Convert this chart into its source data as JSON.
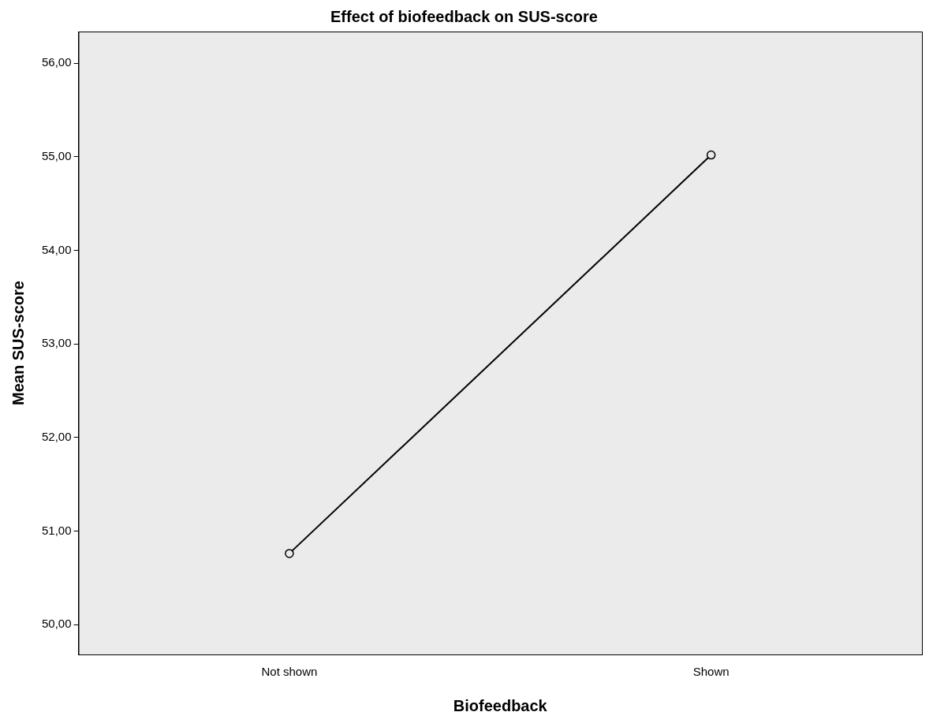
{
  "chart_data": {
    "type": "line",
    "title": "Effect of biofeedback on SUS-score",
    "xlabel": "Biofeedback",
    "ylabel": "Mean SUS-score",
    "categories": [
      "Not shown",
      "Shown"
    ],
    "series": [
      {
        "color": "#000000",
        "values": [
          50.76,
          55.02
        ]
      }
    ],
    "ylim": [
      49.68,
      56.34
    ],
    "yticks": [
      {
        "value": 50,
        "label": "50,00"
      },
      {
        "value": 51,
        "label": "51,00"
      },
      {
        "value": 52,
        "label": "52,00"
      },
      {
        "value": 53,
        "label": "53,00"
      },
      {
        "value": 54,
        "label": "54,00"
      },
      {
        "value": 55,
        "label": "55,00"
      },
      {
        "value": 56,
        "label": "56,00"
      }
    ],
    "grid": false,
    "legend": false,
    "marker": "circle",
    "line_style": "solid"
  }
}
